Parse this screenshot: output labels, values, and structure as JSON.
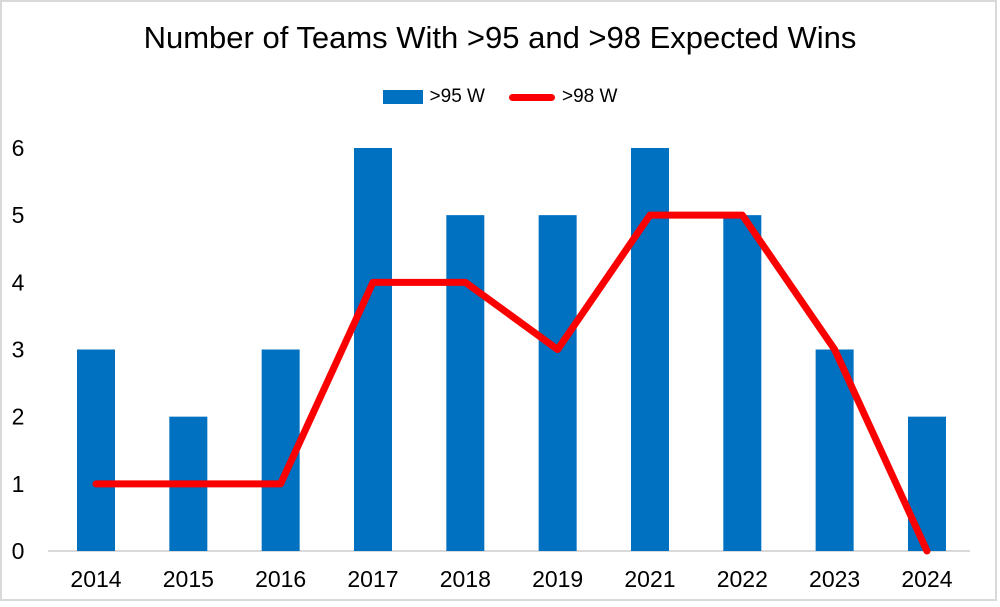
{
  "title": "Number of Teams With >95 and >98 Expected Wins",
  "legend": {
    "items": [
      {
        "label": ">95 W",
        "marker": "bar-swatch",
        "color": "#0070C0"
      },
      {
        "label": ">98 W",
        "marker": "line-swatch",
        "color": "#FA0000"
      }
    ]
  },
  "chart_data": {
    "type": "bar+line combo",
    "title": "Number of Teams With >95 and >98 Expected Wins",
    "categories": [
      "2014",
      "2015",
      "2016",
      "2017",
      "2018",
      "2019",
      "2021",
      "2022",
      "2023",
      "2024"
    ],
    "series": [
      {
        "name": ">95 W",
        "type": "bar",
        "color": "#0070C0",
        "values": [
          3,
          2,
          3,
          6,
          5,
          5,
          6,
          5,
          3,
          2
        ]
      },
      {
        "name": ">98 W",
        "type": "line",
        "color": "#FA0000",
        "values": [
          1,
          1,
          1,
          4,
          4,
          3,
          5,
          5,
          3,
          0
        ]
      }
    ],
    "xlabel": "",
    "ylabel": "",
    "ylim": [
      0,
      6
    ],
    "yticks": [
      0,
      1,
      2,
      3,
      4,
      5,
      6
    ],
    "grid": false,
    "legend_position": "top-center",
    "axis_line_color": "#D9D9D9",
    "background": "#FFFFFF"
  }
}
